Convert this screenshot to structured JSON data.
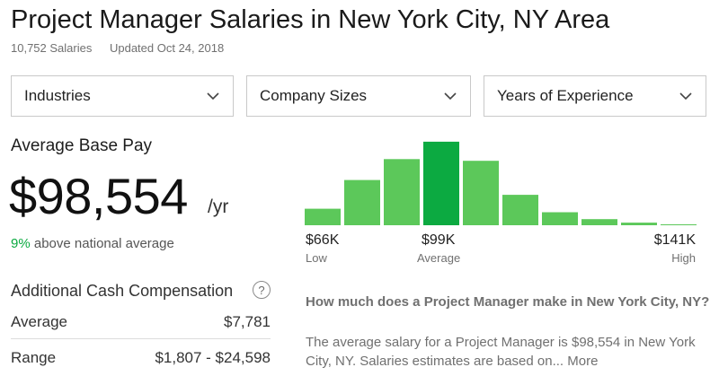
{
  "header": {
    "title": "Project Manager Salaries in New York City, NY Area",
    "salary_count": "10,752 Salaries",
    "updated": "Updated Oct 24, 2018"
  },
  "filters": [
    {
      "label": "Industries",
      "icon": "chevron-down-icon"
    },
    {
      "label": "Company Sizes",
      "icon": "chevron-down-icon"
    },
    {
      "label": "Years of Experience",
      "icon": "chevron-down-icon"
    }
  ],
  "pay": {
    "label": "Average Base Pay",
    "value": "$98,554",
    "unit": "/yr",
    "compare_pct": "9%",
    "compare_text": "above national average"
  },
  "additional_cash": {
    "title": "Additional Cash Compensation",
    "help_icon": "?",
    "rows": [
      {
        "label": "Average",
        "value": "$7,781"
      },
      {
        "label": "Range",
        "value": "$1,807 - $24,598"
      }
    ]
  },
  "colors": {
    "bar": "#5cc85a",
    "bar_highlight": "#0caa41",
    "accent_text": "#0caa41"
  },
  "chart_data": {
    "type": "bar",
    "title": "",
    "xlabel": "",
    "ylabel": "",
    "values": [
      19,
      52,
      76,
      96,
      74,
      35,
      15,
      7,
      3,
      1
    ],
    "highlight_index": 3,
    "ylim": [
      0,
      100
    ],
    "x_ticks": [
      {
        "value": "$66K",
        "sub": "Low"
      },
      {
        "value": "$99K",
        "sub": "Average"
      },
      {
        "value": "$141K",
        "sub": "High"
      }
    ]
  },
  "faq": {
    "question": "How much does a Project Manager make in New York City, NY?",
    "answer": "The average salary for a Project Manager is $98,554 in New York City, NY. Salaries estimates are based on...",
    "more": "More"
  }
}
